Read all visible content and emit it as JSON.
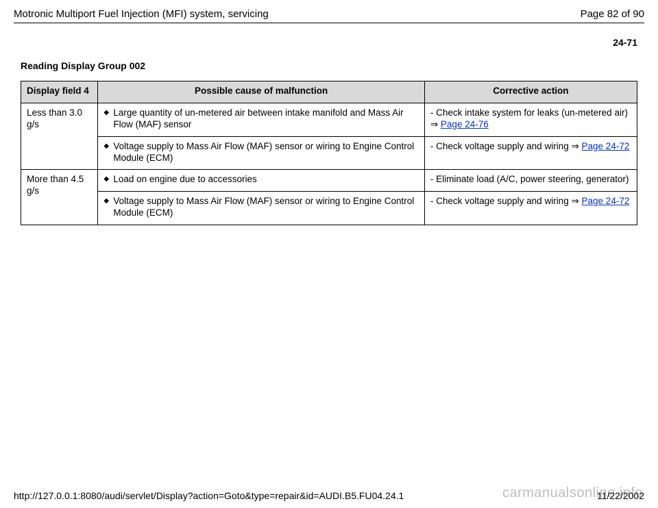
{
  "header": {
    "doc_title": "Motronic Multiport Fuel Injection (MFI) system, servicing",
    "page_of": "Page 82 of 90"
  },
  "section_number": "24-71",
  "heading": "Reading Display Group 002",
  "columns": {
    "c0": "Display field 4",
    "c1": "Possible cause of malfunction",
    "c2": "Corrective action"
  },
  "rows": {
    "r0": {
      "field": "Less than 3.0 g/s",
      "cause_a": "Large quantity of un-metered air between intake manifold and Mass Air Flow (MAF) sensor",
      "cause_b": "Voltage supply to Mass Air Flow (MAF) sensor or wiring to Engine Control Module (ECM)",
      "action_a_prefix": "- Check intake system for leaks (un-metered air)  ",
      "action_a_link": "Page 24-76",
      "action_b_prefix": "- Check voltage supply and wiring   ",
      "action_b_link": "Page 24-72"
    },
    "r1": {
      "field": "More than 4.5 g/s",
      "cause_a": "Load on engine due to accessories",
      "cause_b": "Voltage supply to Mass Air Flow (MAF) sensor or wiring to Engine Control Module (ECM)",
      "action_a": "- Eliminate load (A/C, power steering, generator)",
      "action_b_prefix": "- Check voltage supply and wiring   ",
      "action_b_link": "Page 24-72"
    }
  },
  "footer": {
    "url": "http://127.0.0.1:8080/audi/servlet/Display?action=Goto&type=repair&id=AUDI.B5.FU04.24.1",
    "date": "11/22/2002"
  },
  "watermark": "carmanualsonline.info",
  "glyphs": {
    "bullet": "◆",
    "arrow": "⇒"
  }
}
